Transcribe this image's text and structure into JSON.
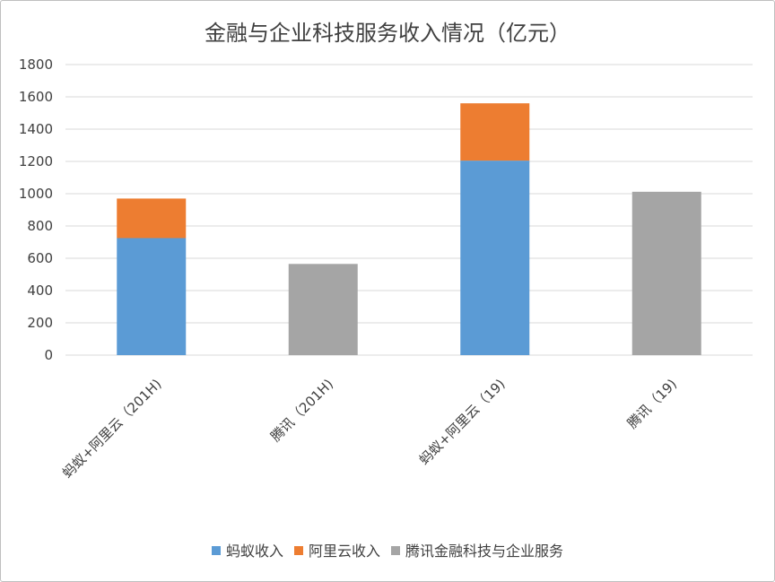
{
  "chart_data": {
    "type": "bar",
    "stacked": true,
    "title": "金融与企业科技服务收入情况（亿元）",
    "xlabel": "",
    "ylabel": "",
    "ylim": [
      0,
      1800
    ],
    "yticks": [
      0,
      200,
      400,
      600,
      800,
      1000,
      1200,
      1400,
      1600,
      1800
    ],
    "grid": true,
    "legend_position": "bottom",
    "categories": [
      "蚂蚁+阿里云（201H)",
      "腾讯（201H)",
      "蚂蚁+阿里云（19)",
      "腾讯（19)"
    ],
    "series": [
      {
        "name": "蚂蚁收入",
        "color": "#5b9bd5",
        "values": [
          725,
          0,
          1205,
          0
        ]
      },
      {
        "name": "阿里云收入",
        "color": "#ed7d31",
        "values": [
          245,
          0,
          355,
          0
        ]
      },
      {
        "name": "腾讯金融科技与企业服务",
        "color": "#a5a5a5",
        "values": [
          0,
          565,
          0,
          1012
        ]
      }
    ]
  }
}
